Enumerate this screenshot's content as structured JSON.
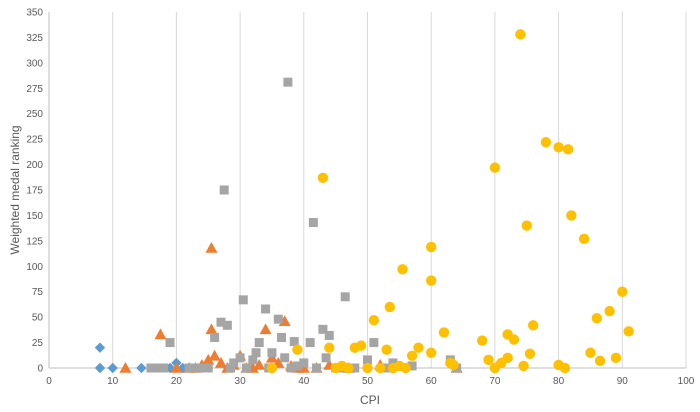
{
  "chart_data": {
    "type": "scatter",
    "title": "",
    "xlabel": "CPI",
    "ylabel": "Weighted medal ranking",
    "xlim": [
      0,
      100
    ],
    "ylim": [
      0,
      350
    ],
    "x_ticks": [
      "0",
      "10",
      "20",
      "30",
      "40",
      "50",
      "60",
      "70",
      "80",
      "90",
      "100"
    ],
    "y_ticks": [
      "0",
      "25",
      "50",
      "75",
      "100",
      "125",
      "150",
      "175",
      "200",
      "225",
      "250",
      "275",
      "300",
      "325",
      "350"
    ],
    "grid": "vertical",
    "legend": "none",
    "series": [
      {
        "marker": "diamond",
        "color": "#5b9bd5",
        "points": [
          [
            8,
            20
          ],
          [
            8,
            0
          ],
          [
            10,
            0
          ],
          [
            14.5,
            0
          ],
          [
            19,
            0
          ],
          [
            20,
            5
          ],
          [
            21,
            0
          ]
        ]
      },
      {
        "marker": "triangle",
        "color": "#ed7d31",
        "points": [
          [
            12,
            0
          ],
          [
            17.5,
            33
          ],
          [
            20,
            0
          ],
          [
            22,
            0
          ],
          [
            23,
            0
          ],
          [
            24,
            3
          ],
          [
            25,
            8
          ],
          [
            25.5,
            118
          ],
          [
            25.5,
            38
          ],
          [
            26,
            12
          ],
          [
            27,
            5
          ],
          [
            28,
            0
          ],
          [
            29,
            3
          ],
          [
            30,
            12
          ],
          [
            31,
            0
          ],
          [
            32,
            0
          ],
          [
            33,
            3
          ],
          [
            34,
            38
          ],
          [
            35,
            10
          ],
          [
            36,
            5
          ],
          [
            37,
            46
          ],
          [
            38,
            2
          ],
          [
            39,
            0
          ],
          [
            40,
            0
          ],
          [
            42,
            0
          ],
          [
            44,
            3
          ],
          [
            47,
            0
          ],
          [
            52,
            3
          ],
          [
            64,
            0
          ]
        ]
      },
      {
        "marker": "square",
        "color": "#a5a5a5",
        "points": [
          [
            16,
            0
          ],
          [
            17,
            0
          ],
          [
            18,
            0
          ],
          [
            19,
            25
          ],
          [
            22,
            0
          ],
          [
            23,
            0
          ],
          [
            24,
            0
          ],
          [
            25,
            0
          ],
          [
            26,
            30
          ],
          [
            27,
            45
          ],
          [
            27.5,
            175
          ],
          [
            28,
            42
          ],
          [
            28.5,
            0
          ],
          [
            29,
            5
          ],
          [
            30,
            10
          ],
          [
            30.5,
            67
          ],
          [
            31,
            0
          ],
          [
            32,
            8
          ],
          [
            32.5,
            15
          ],
          [
            33,
            25
          ],
          [
            34,
            58
          ],
          [
            34.5,
            0
          ],
          [
            35,
            15
          ],
          [
            36,
            48
          ],
          [
            36.5,
            30
          ],
          [
            37,
            10
          ],
          [
            37.5,
            281
          ],
          [
            38,
            0
          ],
          [
            38.5,
            26
          ],
          [
            39,
            2
          ],
          [
            40,
            5
          ],
          [
            41,
            25
          ],
          [
            41.5,
            143
          ],
          [
            42,
            0
          ],
          [
            43,
            38
          ],
          [
            43.5,
            10
          ],
          [
            44,
            32
          ],
          [
            45,
            0
          ],
          [
            46,
            0
          ],
          [
            46.5,
            70
          ],
          [
            48,
            0
          ],
          [
            50,
            8
          ],
          [
            51,
            25
          ],
          [
            53,
            0
          ],
          [
            54,
            5
          ],
          [
            57,
            2
          ],
          [
            63,
            8
          ],
          [
            64,
            0
          ]
        ]
      },
      {
        "marker": "circle",
        "color": "#ffc000",
        "points": [
          [
            35,
            0
          ],
          [
            39,
            18
          ],
          [
            43,
            187
          ],
          [
            44,
            20
          ],
          [
            45,
            0
          ],
          [
            46,
            2
          ],
          [
            47,
            0
          ],
          [
            48,
            20
          ],
          [
            49,
            22
          ],
          [
            50,
            0
          ],
          [
            51,
            47
          ],
          [
            52,
            0
          ],
          [
            53,
            18
          ],
          [
            53.5,
            60
          ],
          [
            54,
            0
          ],
          [
            55,
            2
          ],
          [
            55.5,
            97
          ],
          [
            56,
            0
          ],
          [
            57,
            12
          ],
          [
            58,
            20
          ],
          [
            60,
            119
          ],
          [
            60,
            86
          ],
          [
            60,
            15
          ],
          [
            62,
            35
          ],
          [
            63,
            5
          ],
          [
            63.5,
            3
          ],
          [
            68,
            27
          ],
          [
            69,
            8
          ],
          [
            70,
            0
          ],
          [
            70,
            197
          ],
          [
            71,
            5
          ],
          [
            72,
            10
          ],
          [
            72,
            33
          ],
          [
            73,
            28
          ],
          [
            74,
            328
          ],
          [
            74.5,
            2
          ],
          [
            75,
            140
          ],
          [
            75.5,
            14
          ],
          [
            76,
            42
          ],
          [
            78,
            222
          ],
          [
            80,
            217
          ],
          [
            80,
            3
          ],
          [
            81,
            0
          ],
          [
            81.5,
            215
          ],
          [
            82,
            150
          ],
          [
            84,
            127
          ],
          [
            85,
            15
          ],
          [
            86,
            49
          ],
          [
            86.5,
            7
          ],
          [
            88,
            56
          ],
          [
            89,
            10
          ],
          [
            90,
            75
          ],
          [
            91,
            36
          ]
        ]
      }
    ]
  }
}
